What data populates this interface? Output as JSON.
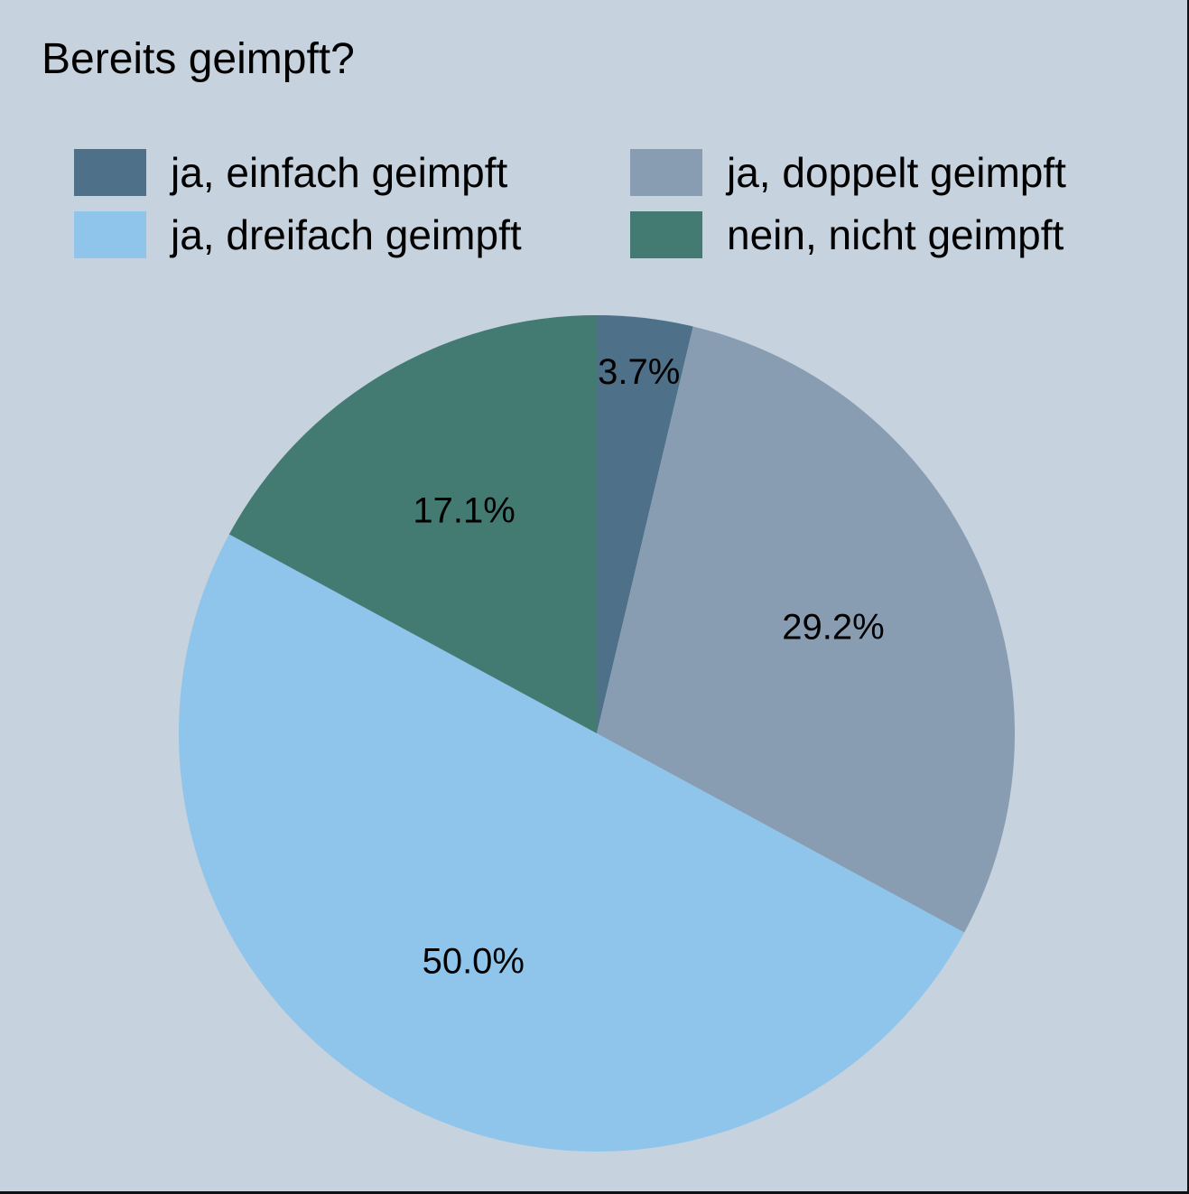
{
  "colors": {
    "background": "#c6d2de",
    "ja_einfach": "#4e7189",
    "ja_doppelt": "#899db2",
    "ja_dreifach": "#8fc5eb",
    "nein": "#437b73"
  },
  "chart_data": {
    "type": "pie",
    "title": "Bereits geimpft?",
    "legend_position": "top",
    "start": "12 o'clock",
    "direction": "clockwise",
    "slices": [
      {
        "label": "ja, einfach geimpft",
        "value": 3.7,
        "display": "3.7%",
        "color": "#4e7189"
      },
      {
        "label": "ja, doppelt geimpft",
        "value": 29.2,
        "display": "29.2%",
        "color": "#899db2"
      },
      {
        "label": "ja, dreifach geimpft",
        "value": 50.0,
        "display": "50.0%",
        "color": "#8fc5eb"
      },
      {
        "label": "nein, nicht geimpft",
        "value": 17.1,
        "display": "17.1%",
        "color": "#437b73"
      }
    ]
  }
}
